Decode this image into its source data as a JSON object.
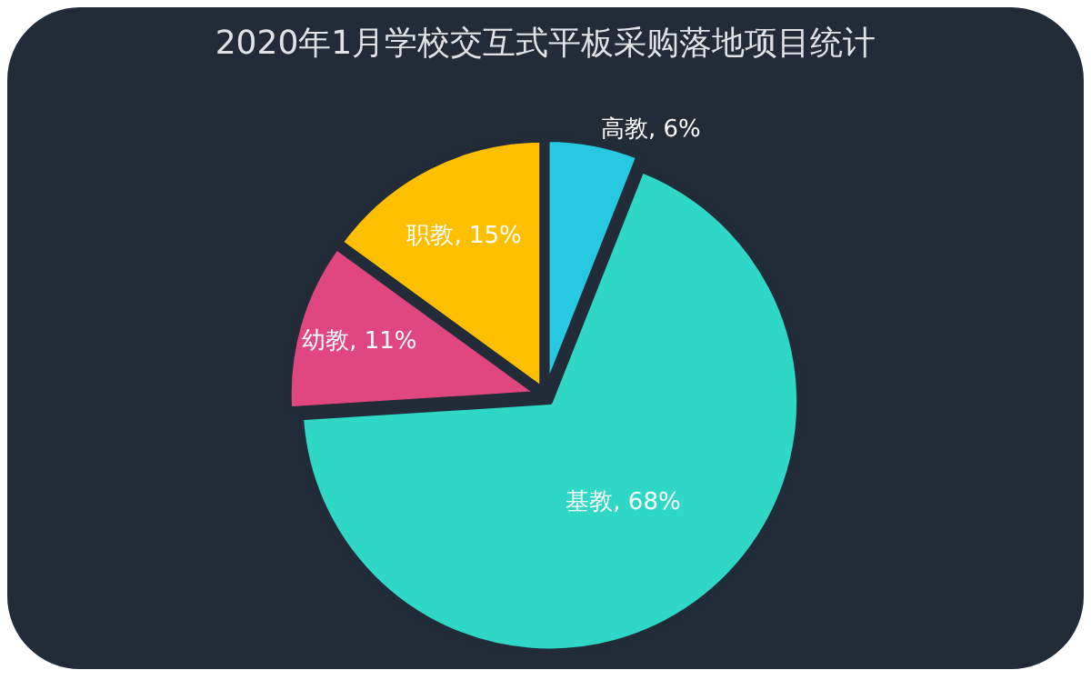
{
  "chart_data": {
    "type": "pie",
    "title": "2020年1月学校交互式平板采购落地项目统计",
    "categories": [
      "高教",
      "基教",
      "幼教",
      "职教"
    ],
    "values": [
      6,
      68,
      11,
      15
    ],
    "value_labels": [
      "6%",
      "68%",
      "11%",
      "15%"
    ],
    "colors": [
      "#26c8e2",
      "#2fd8c6",
      "#e0467f",
      "#fdbf00"
    ],
    "legend": false
  }
}
